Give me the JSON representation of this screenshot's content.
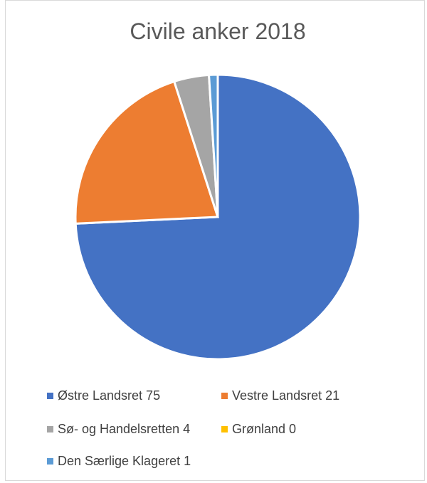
{
  "chart_data": {
    "type": "pie",
    "title": "Civile anker 2018",
    "categories": [
      "Østre Landsret",
      "Vestre Landsret",
      "Sø- og Handelsretten",
      "Grønland",
      "Den Særlige Klageret"
    ],
    "values": [
      75,
      21,
      4,
      0,
      1
    ],
    "legend_labels": [
      "Østre Landsret 75",
      "Vestre Landsret 21",
      "Sø- og Handelsretten 4",
      "Grønland 0",
      "Den Særlige Klageret 1"
    ],
    "colors": [
      "#4472c4",
      "#ed7d31",
      "#a5a5a5",
      "#ffc000",
      "#5b9bd5"
    ],
    "legend_position": "bottom"
  }
}
